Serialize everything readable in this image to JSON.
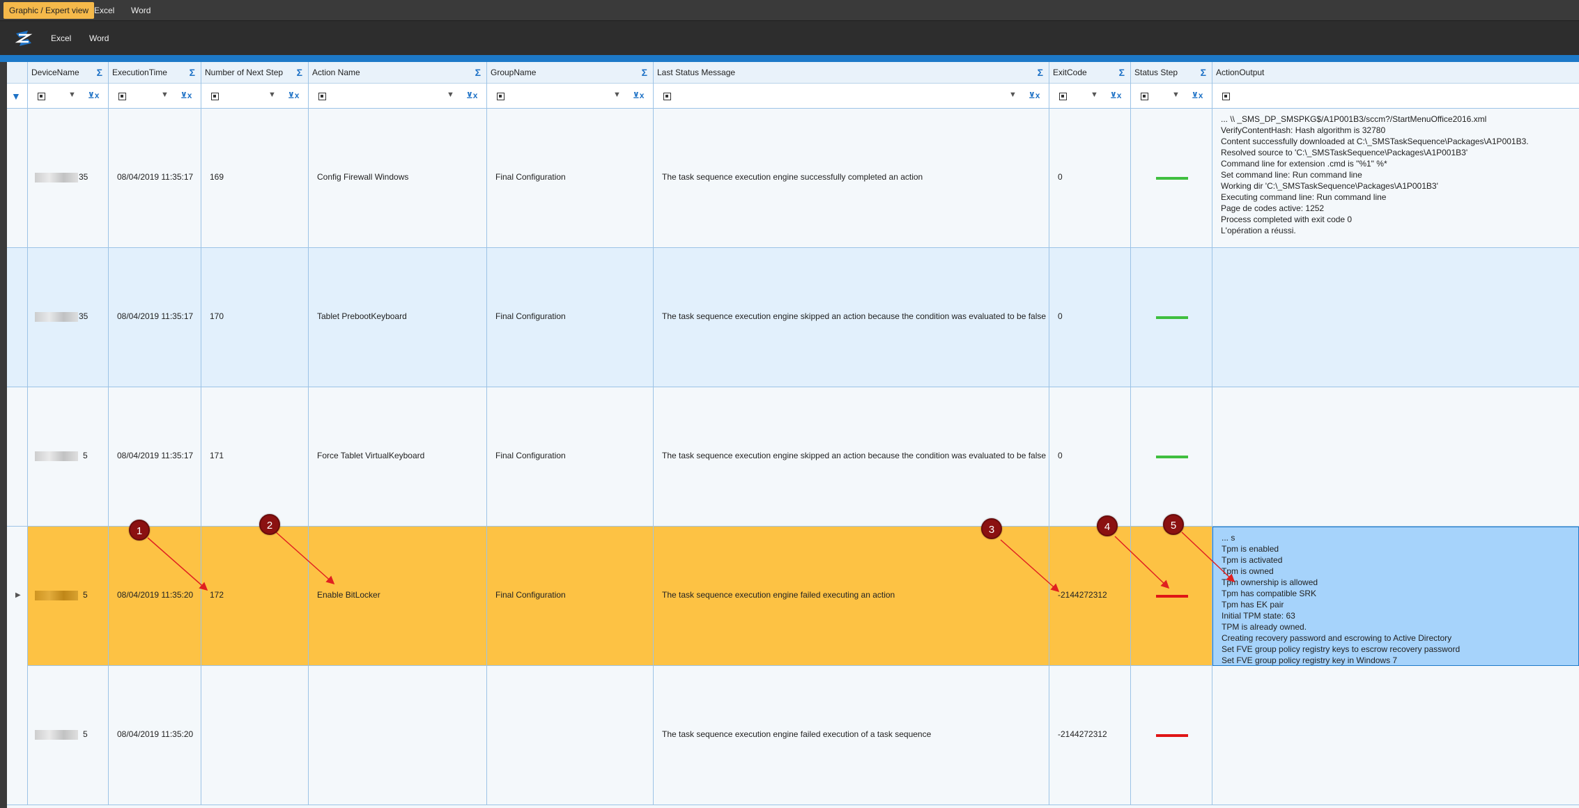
{
  "top_tabs": [
    {
      "label": "Graphic / Expert view",
      "active": true
    },
    {
      "label": "Excel",
      "active": false
    },
    {
      "label": "Word",
      "active": false
    }
  ],
  "toolbar": {
    "excel_label": "Excel",
    "word_label": "Word",
    "logo_icon": "refresh-logo-icon"
  },
  "columns": [
    {
      "label": "DeviceName"
    },
    {
      "label": "ExecutionTime"
    },
    {
      "label": "Number of Next Step"
    },
    {
      "label": "Action Name"
    },
    {
      "label": "GroupName"
    },
    {
      "label": "Last Status Message"
    },
    {
      "label": "ExitCode"
    },
    {
      "label": "Status Step"
    },
    {
      "label": "ActionOutput"
    }
  ],
  "rows": [
    {
      "device_suffix": "35",
      "time": "08/04/2019 11:35:17",
      "next_step": "169",
      "action": "Config Firewall Windows",
      "group": "Final Configuration",
      "message": "The task sequence execution engine successfully completed an action",
      "exit_code": "0",
      "status_color": "#3fbf3f",
      "output": [
        "... \\\\                    _SMS_DP_SMSPKG$/A1P001B3/sccm?/StartMenuOffice2016.xml",
        "VerifyContentHash: Hash algorithm is 32780",
        "Content successfully downloaded at C:\\_SMSTaskSequence\\Packages\\A1P001B3.",
        "Resolved source to 'C:\\_SMSTaskSequence\\Packages\\A1P001B3'",
        "Command line for extension .cmd is \"%1\" %*",
        "Set command line: Run command line",
        "Working dir 'C:\\_SMSTaskSequence\\Packages\\A1P001B3'",
        "Executing command line: Run command line",
        "Page de codes active: 1252",
        "Process completed with exit code 0",
        "L'opération a réussi."
      ]
    },
    {
      "device_suffix": "35",
      "time": "08/04/2019 11:35:17",
      "next_step": "170",
      "action": "Tablet PrebootKeyboard",
      "group": "Final Configuration",
      "message": "The task sequence execution engine skipped an action because the condition was evaluated to be false",
      "exit_code": "0",
      "status_color": "#3fbf3f",
      "output": []
    },
    {
      "device_suffix": "5",
      "time": "08/04/2019 11:35:17",
      "next_step": "171",
      "action": "Force Tablet VirtualKeyboard",
      "group": "Final Configuration",
      "message": "The task sequence execution engine skipped an action because the condition was evaluated to be false",
      "exit_code": "0",
      "status_color": "#3fbf3f",
      "output": []
    },
    {
      "device_suffix": "5",
      "time": "08/04/2019 11:35:20",
      "next_step": "172",
      "action": "Enable BitLocker",
      "group": "Final Configuration",
      "message": "The task sequence execution engine failed executing an action",
      "exit_code": "-2144272312",
      "status_color": "#e01616",
      "output": [
        "... s",
        "Tpm is enabled",
        "Tpm is activated",
        "Tpm is owned",
        "Tpm ownership is allowed",
        "Tpm has compatible SRK",
        "Tpm has EK pair",
        "Initial TPM state: 63",
        "TPM is already owned.",
        "Creating recovery password and escrowing to Active Directory",
        "Set FVE group policy registry keys to escrow recovery password",
        "Set FVE group policy registry key in Windows 7"
      ]
    },
    {
      "device_suffix": "5",
      "time": "08/04/2019 11:35:20",
      "next_step": "",
      "action": "",
      "group": "",
      "message": "The task sequence execution engine failed execution of a task sequence",
      "exit_code": "-2144272312",
      "status_color": "#e01616",
      "output": []
    }
  ],
  "annotations": [
    "1",
    "2",
    "3",
    "4",
    "5"
  ]
}
